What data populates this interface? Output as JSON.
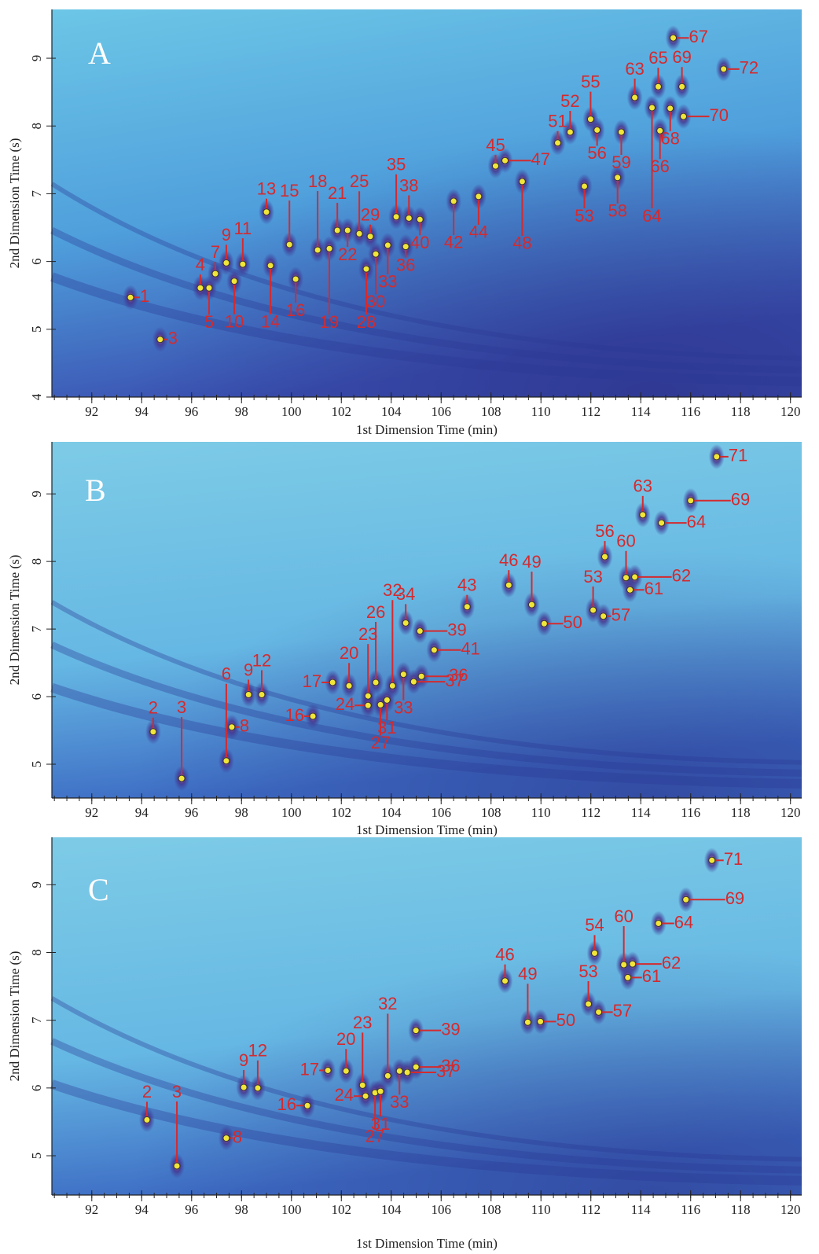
{
  "chart_data": [
    {
      "type": "scatter",
      "panel_label": "A",
      "xlabel": "1st Dimension Time (min)",
      "ylabel": "2nd Dimension Time (s)",
      "xlim": [
        90.4,
        120.45
      ],
      "ylim": [
        4,
        9.72
      ],
      "xticks": [
        92,
        94,
        96,
        98,
        100,
        102,
        104,
        106,
        108,
        110,
        112,
        114,
        116,
        118,
        120
      ],
      "yticks": [
        4,
        5,
        6,
        7,
        8,
        9
      ],
      "marker_color": "#f2e53a",
      "label_color": "#d42a2e",
      "point_labels": [
        "1",
        "3",
        "4",
        "5",
        "7",
        "9",
        "10",
        "11",
        "13",
        "14",
        "15",
        "16",
        "18",
        "19",
        "21",
        "22",
        "25",
        "28",
        "29",
        "30",
        "33",
        "35",
        "36",
        "38",
        "40",
        "42",
        "44",
        "45",
        "47",
        "48",
        "51",
        "52",
        "53",
        "55",
        "56",
        "58",
        "59",
        "63",
        "64",
        "65",
        "66",
        "67",
        "68",
        "69",
        "70",
        "72"
      ],
      "x": [
        93.55,
        94.74,
        96.35,
        96.7,
        96.95,
        97.39,
        97.71,
        98.05,
        99.0,
        99.16,
        99.92,
        100.17,
        101.05,
        101.52,
        101.84,
        102.25,
        102.72,
        103.0,
        103.16,
        103.38,
        103.86,
        104.2,
        104.58,
        104.71,
        105.15,
        106.5,
        107.5,
        108.18,
        108.56,
        109.25,
        110.67,
        111.17,
        111.74,
        111.99,
        112.25,
        113.07,
        113.22,
        113.76,
        114.45,
        114.7,
        114.77,
        115.3,
        115.18,
        115.65,
        115.71,
        117.32
      ],
      "y": [
        5.47,
        4.85,
        5.61,
        5.61,
        5.82,
        5.98,
        5.71,
        5.96,
        6.73,
        5.94,
        6.25,
        5.74,
        6.17,
        6.19,
        6.46,
        6.46,
        6.41,
        5.89,
        6.37,
        6.11,
        6.24,
        6.66,
        6.22,
        6.64,
        6.62,
        6.89,
        6.96,
        7.41,
        7.49,
        7.18,
        7.75,
        7.91,
        7.11,
        8.1,
        7.94,
        7.24,
        7.91,
        8.42,
        8.27,
        8.58,
        7.93,
        9.3,
        8.26,
        8.58,
        8.14,
        8.84
      ]
    },
    {
      "type": "scatter",
      "panel_label": "B",
      "xlabel": "1st Dimension Time (min)",
      "ylabel": "2nd Dimension Time (s)",
      "xlim": [
        90.4,
        120.45
      ],
      "ylim": [
        4.5,
        9.77
      ],
      "xticks": [
        92,
        94,
        96,
        98,
        100,
        102,
        104,
        106,
        108,
        110,
        112,
        114,
        116,
        118,
        120
      ],
      "yticks": [
        5,
        6,
        7,
        8,
        9
      ],
      "marker_color": "#f2e53a",
      "label_color": "#d42a2e",
      "point_labels": [
        "2",
        "3",
        "6",
        "8",
        "9",
        "12",
        "16",
        "17",
        "20",
        "23",
        "24",
        "26",
        "27",
        "31",
        "32",
        "33",
        "34",
        "36",
        "37",
        "39",
        "41",
        "43",
        "46",
        "49",
        "50",
        "53",
        "56",
        "57",
        "60",
        "61",
        "62",
        "63",
        "64",
        "69",
        "71"
      ],
      "x": [
        94.46,
        95.6,
        97.39,
        97.61,
        98.28,
        98.81,
        100.86,
        101.65,
        102.31,
        103.07,
        103.07,
        103.38,
        103.57,
        103.83,
        104.05,
        104.49,
        104.58,
        105.21,
        104.9,
        105.15,
        105.72,
        107.04,
        108.71,
        109.63,
        110.13,
        112.09,
        112.56,
        112.5,
        113.41,
        113.57,
        113.76,
        114.08,
        114.83,
        116.0,
        117.04
      ],
      "y": [
        5.48,
        4.79,
        5.05,
        5.55,
        6.03,
        6.03,
        5.71,
        6.21,
        6.16,
        6.01,
        5.87,
        6.21,
        5.88,
        5.95,
        6.16,
        6.33,
        7.09,
        6.3,
        6.22,
        6.97,
        6.69,
        7.33,
        7.65,
        7.36,
        7.08,
        7.28,
        8.07,
        7.19,
        7.76,
        7.58,
        7.77,
        8.69,
        8.57,
        8.9,
        9.55
      ]
    },
    {
      "type": "scatter",
      "panel_label": "C",
      "xlabel": "1st Dimension Time (min)",
      "ylabel": "2nd Dimension Time (s)",
      "xlim": [
        90.4,
        120.45
      ],
      "ylim": [
        4.42,
        9.7
      ],
      "xticks": [
        92,
        94,
        96,
        98,
        100,
        102,
        104,
        106,
        108,
        110,
        112,
        114,
        116,
        118,
        120
      ],
      "yticks": [
        5,
        6,
        7,
        8,
        9
      ],
      "marker_color": "#f2e53a",
      "label_color": "#d42a2e",
      "point_labels": [
        "2",
        "3",
        "8",
        "9",
        "12",
        "16",
        "17",
        "20",
        "23",
        "24",
        "27",
        "31",
        "32",
        "33",
        "36",
        "37",
        "39",
        "46",
        "49",
        "50",
        "53",
        "54",
        "57",
        "60",
        "61",
        "62",
        "64",
        "69",
        "71"
      ],
      "x": [
        94.21,
        95.41,
        97.39,
        98.09,
        98.65,
        100.64,
        101.46,
        102.19,
        102.85,
        102.97,
        103.35,
        103.57,
        103.86,
        104.33,
        104.99,
        104.64,
        104.99,
        108.56,
        109.47,
        109.98,
        111.9,
        112.15,
        112.31,
        113.32,
        113.48,
        113.67,
        114.71,
        115.81,
        116.85
      ],
      "y": [
        5.53,
        4.85,
        5.26,
        6.01,
        6.0,
        5.74,
        6.26,
        6.25,
        6.04,
        5.88,
        5.93,
        5.95,
        6.18,
        6.25,
        6.31,
        6.23,
        6.85,
        7.58,
        6.97,
        6.98,
        7.24,
        7.99,
        7.12,
        7.82,
        7.63,
        7.83,
        8.43,
        8.78,
        9.36
      ]
    }
  ]
}
